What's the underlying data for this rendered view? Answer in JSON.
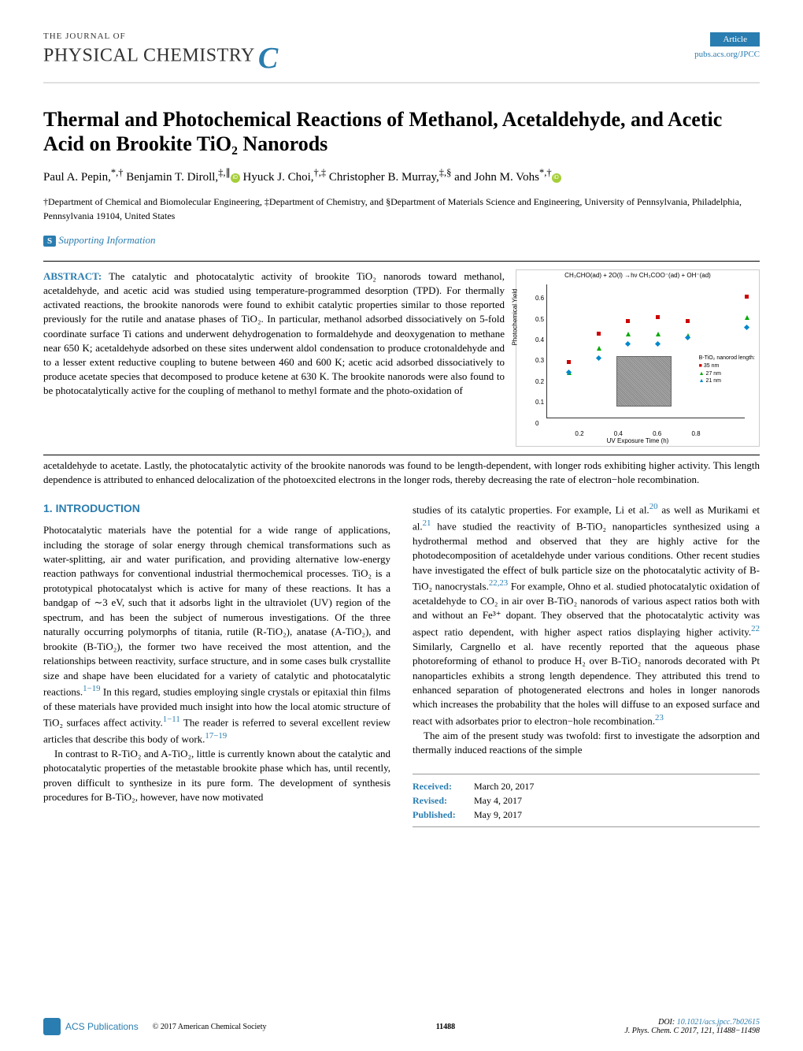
{
  "header": {
    "journal_upper": "THE JOURNAL OF",
    "journal_main": "PHYSICAL CHEMISTRY",
    "journal_c": "C",
    "article_badge": "Article",
    "pubs_link": "pubs.acs.org/JPCC"
  },
  "title": "Thermal and Photochemical Reactions of Methanol, Acetaldehyde, and Acetic Acid on Brookite TiO₂ Nanorods",
  "authors_html": "Paul A. Pepin,*,† Benjamin T. Diroll,‡,∥ ⓘ Hyuck J. Choi,†,‡ Christopher B. Murray,‡,§ and John M. Vohs*,† ⓘ",
  "authors": {
    "a1": "Paul A. Pepin,",
    "a1_aff": "*,†",
    "a2": "Benjamin T. Diroll,",
    "a2_aff": "‡,∥",
    "a3": "Hyuck J. Choi,",
    "a3_aff": "†,‡",
    "a4": "Christopher B. Murray,",
    "a4_aff": "‡,§",
    "a5": "and John M. Vohs",
    "a5_aff": "*,†"
  },
  "affiliation": "†Department of Chemical and Biomolecular Engineering, ‡Department of Chemistry, and §Department of Materials Science and Engineering, University of Pennsylvania, Philadelphia, Pennsylvania 19104, United States",
  "supporting": "Supporting Information",
  "abstract": {
    "label": "ABSTRACT:",
    "text": "The catalytic and photocatalytic activity of brookite TiO₂ nanorods toward methanol, acetaldehyde, and acetic acid was studied using temperature-programmed desorption (TPD). For thermally activated reactions, the brookite nanorods were found to exhibit catalytic properties similar to those reported previously for the rutile and anatase phases of TiO₂. In particular, methanol adsorbed dissociatively on 5-fold coordinate surface Ti cations and underwent dehydrogenation to formaldehyde and deoxygenation to methane near 650 K; acetaldehyde adsorbed on these sites underwent aldol condensation to produce crotonaldehyde and to a lesser extent reductive coupling to butene between 460 and 600 K; acetic acid adsorbed dissociatively to produce acetate species that decomposed to produce ketene at 630 K. The brookite nanorods were also found to be photocatalytically active for the coupling of methanol to methyl formate and the photo-oxidation of",
    "text2": "acetaldehyde to acetate. Lastly, the photocatalytic activity of the brookite nanorods was found to be length-dependent, with longer rods exhibiting higher activity. This length dependence is attributed to enhanced delocalization of the photoexcited electrons in the longer rods, thereby decreasing the rate of electron−hole recombination."
  },
  "chart": {
    "type": "scatter",
    "equation": "CH₃CHO(ad) + 2O(l) →hν CH₃COO⁻(ad) + OH⁻(ad)",
    "ylabel": "Photochemical Yield",
    "xlabel": "UV Exposure Time (h)",
    "xlim": [
      0,
      1.0
    ],
    "ylim": [
      0,
      0.65
    ],
    "xticks": [
      0,
      0.2,
      0.4,
      0.6,
      0.8,
      1
    ],
    "yticks": [
      0,
      0.1,
      0.2,
      0.3,
      0.4,
      0.5,
      0.6
    ],
    "legend_title": "B-TiO₂ nanorod length:",
    "legend": [
      {
        "marker": "square",
        "color": "#cc0000",
        "label": "35 nm"
      },
      {
        "marker": "triangle",
        "color": "#00aa00",
        "label": "27 nm"
      },
      {
        "marker": "diamond",
        "color": "#0088cc",
        "label": "21 nm"
      }
    ],
    "series": [
      {
        "color": "#cc0000",
        "shape": "square",
        "points": [
          [
            0.1,
            0.28
          ],
          [
            0.25,
            0.42
          ],
          [
            0.4,
            0.48
          ],
          [
            0.55,
            0.5
          ],
          [
            0.7,
            0.48
          ],
          [
            1.0,
            0.6
          ]
        ]
      },
      {
        "color": "#00aa00",
        "shape": "triangle",
        "points": [
          [
            0.1,
            0.23
          ],
          [
            0.25,
            0.35
          ],
          [
            0.4,
            0.42
          ],
          [
            0.55,
            0.42
          ],
          [
            0.7,
            0.41
          ],
          [
            1.0,
            0.5
          ]
        ]
      },
      {
        "color": "#0088cc",
        "shape": "diamond",
        "points": [
          [
            0.1,
            0.23
          ],
          [
            0.25,
            0.3
          ],
          [
            0.4,
            0.37
          ],
          [
            0.55,
            0.37
          ],
          [
            0.7,
            0.4
          ],
          [
            1.0,
            0.45
          ]
        ]
      }
    ],
    "background_color": "#ffffff",
    "axis_color": "#333333",
    "font_family": "sans-serif",
    "font_size": 8
  },
  "section1_title": "1. INTRODUCTION",
  "col1": {
    "p1": "Photocatalytic materials have the potential for a wide range of applications, including the storage of solar energy through chemical transformations such as water-splitting, air and water purification, and providing alternative low-energy reaction pathways for conventional industrial thermochemical processes. TiO₂ is a prototypical photocatalyst which is active for many of these reactions. It has a bandgap of ∼3 eV, such that it adsorbs light in the ultraviolet (UV) region of the spectrum, and has been the subject of numerous investigations. Of the three naturally occurring polymorphs of titania, rutile (R-TiO₂), anatase (A-TiO₂), and brookite (B-TiO₂), the former two have received the most attention, and the relationships between reactivity, surface structure, and in some cases bulk crystallite size and shape have been elucidated for a variety of catalytic and photocatalytic reactions.",
    "ref1": "1−19",
    "p1b": " In this regard, studies employing single crystals or epitaxial thin films of these materials have provided much insight into how the local atomic structure of TiO₂ surfaces affect activity.",
    "ref2": "1−11",
    "p1c": " The reader is referred to several excellent review articles that describe this body of work.",
    "ref3": "17−19",
    "p2": "In contrast to R-TiO₂ and A-TiO₂, little is currently known about the catalytic and photocatalytic properties of the metastable brookite phase which has, until recently, proven difficult to synthesize in its pure form. The development of synthesis procedures for B-TiO₂, however, have now motivated"
  },
  "col2": {
    "p1": "studies of its catalytic properties. For example, Li et al.",
    "ref1": "20",
    "p1b": " as well as Murikami et al.",
    "ref2": "21",
    "p1c": " have studied the reactivity of B-TiO₂ nanoparticles synthesized using a hydrothermal method and observed that they are highly active for the photodecomposition of acetaldehyde under various conditions. Other recent studies have investigated the effect of bulk particle size on the photocatalytic activity of B-TiO₂ nanocrystals.",
    "ref3": "22,23",
    "p1d": " For example, Ohno et al. studied photocatalytic oxidation of acetaldehyde to CO₂ in air over B-TiO₂ nanorods of various aspect ratios both with and without an Fe³⁺ dopant. They observed that the photocatalytic activity was aspect ratio dependent, with higher aspect ratios displaying higher activity.",
    "ref4": "22",
    "p1e": " Similarly, Cargnello et al. have recently reported that the aqueous phase photoreforming of ethanol to produce H₂ over B-TiO₂ nanorods decorated with Pt nanoparticles exhibits a strong length dependence. They attributed this trend to enhanced separation of photogenerated electrons and holes in longer nanorods which increases the probability that the holes will diffuse to an exposed surface and react with adsorbates prior to electron−hole recombination.",
    "ref5": "23",
    "p2": "The aim of the present study was twofold: first to investigate the adsorption and thermally induced reactions of the simple"
  },
  "dates": {
    "received_label": "Received:",
    "received": "March 20, 2017",
    "revised_label": "Revised:",
    "revised": "May 4, 2017",
    "published_label": "Published:",
    "published": "May 9, 2017"
  },
  "footer": {
    "acs": "ACS Publications",
    "copyright": "© 2017 American Chemical Society",
    "page": "11488",
    "doi_label": "DOI: ",
    "doi": "10.1021/acs.jpcc.7b02615",
    "citation": "J. Phys. Chem. C 2017, 121, 11488−11498"
  }
}
